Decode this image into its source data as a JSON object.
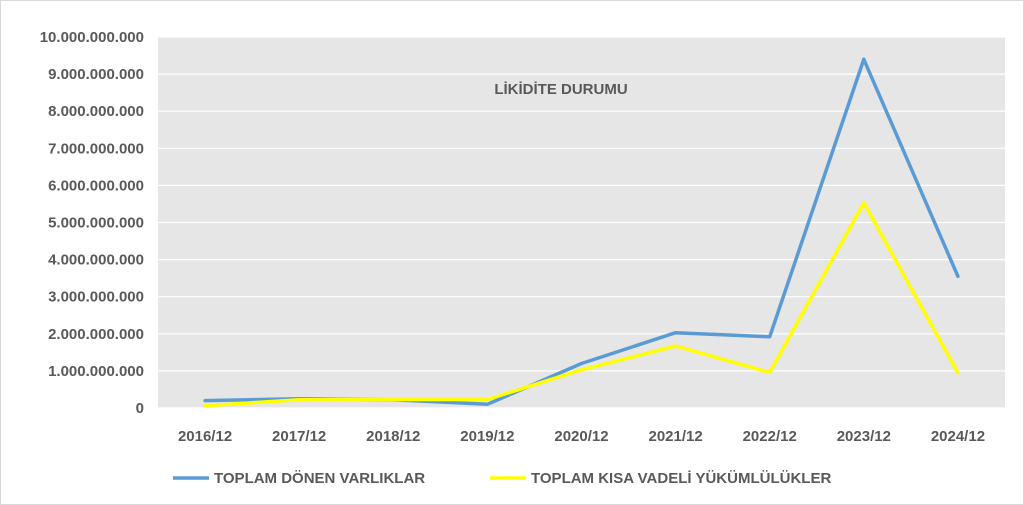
{
  "chart_data": {
    "type": "line",
    "title": "LİKİDİTE DURUMU",
    "xlabel": "",
    "ylabel": "",
    "categories": [
      "2016/12",
      "2017/12",
      "2018/12",
      "2019/12",
      "2020/12",
      "2021/12",
      "2022/12",
      "2023/12",
      "2024/12"
    ],
    "ylim": [
      0,
      10000000000
    ],
    "yticks": [
      0,
      1000000000,
      2000000000,
      3000000000,
      4000000000,
      5000000000,
      6000000000,
      7000000000,
      8000000000,
      9000000000,
      10000000000
    ],
    "ytick_labels": [
      "0",
      "1.000.000.000",
      "2.000.000.000",
      "3.000.000.000",
      "4.000.000.000",
      "5.000.000.000",
      "6.000.000.000",
      "7.000.000.000",
      "8.000.000.000",
      "9.000.000.000",
      "10.000.000.000"
    ],
    "grid": true,
    "legend_position": "bottom",
    "series": [
      {
        "name": "TOPLAM DÖNEN VARLIKLAR",
        "color": "#5b9bd5",
        "values": [
          200000000,
          250000000,
          220000000,
          100000000,
          1200000000,
          2030000000,
          1920000000,
          9400000000,
          3550000000
        ]
      },
      {
        "name": "TOPLAM KISA VADELİ YÜKÜMLÜLÜKLER",
        "color": "#ffff00",
        "values": [
          60000000,
          220000000,
          230000000,
          230000000,
          1030000000,
          1670000000,
          960000000,
          5530000000,
          950000000
        ]
      }
    ],
    "plot_background": "#e7e6e6",
    "gridline_color": "#ffffff",
    "text_color": "#595959"
  }
}
